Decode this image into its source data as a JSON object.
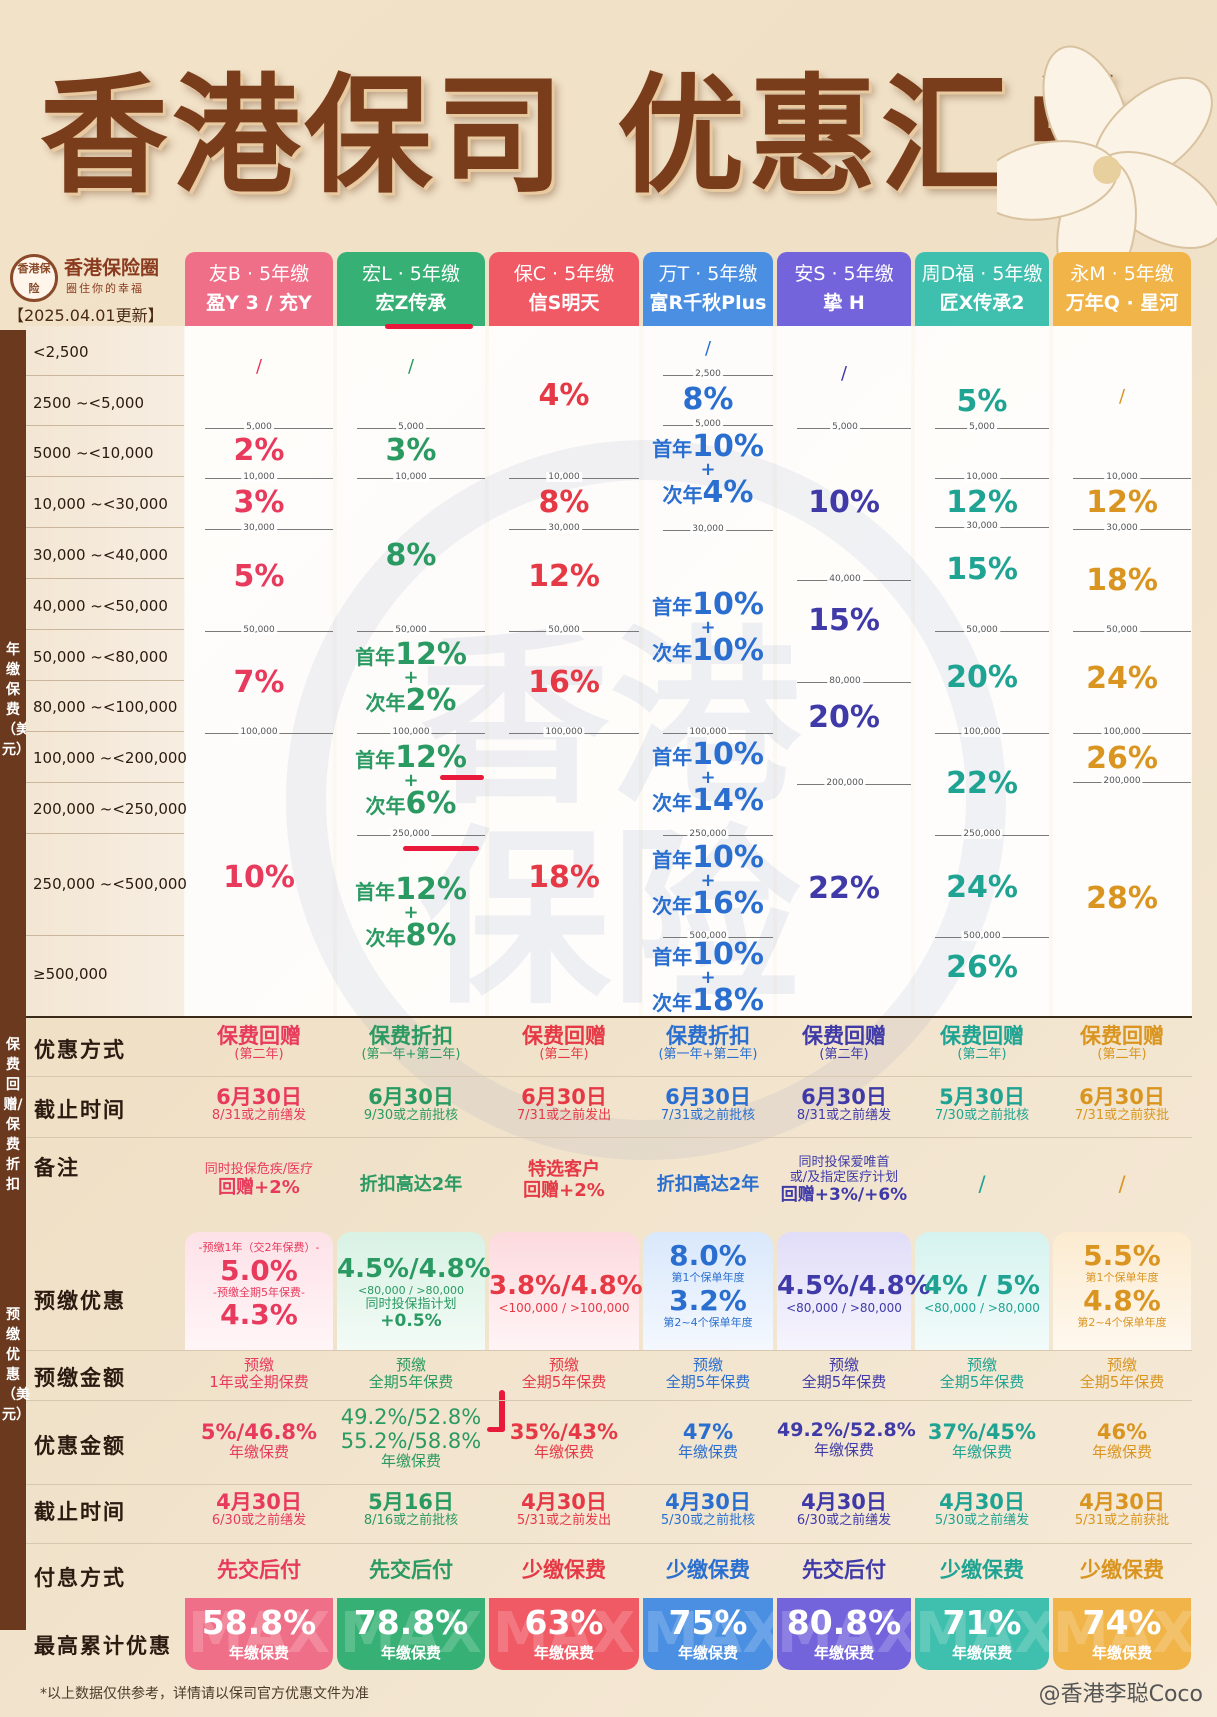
{
  "title": "香港保司 优惠汇总",
  "logo": {
    "badge": "香港保险",
    "name": "香港保险圈",
    "slogan": "圈住你的幸福",
    "update": "【2025.04.01更新】"
  },
  "side_labels": {
    "annual": "年缴保费（美元）",
    "refund": "保费回赠/保费折扣",
    "prepay": "预缴优惠（美元）"
  },
  "columns": [
    {
      "company": "友B · 5年缴",
      "product": "盈Y 3 / 充Y",
      "color": "#ef5f7a"
    },
    {
      "company": "宏L · 5年缴",
      "product": "宏Z传承",
      "color": "#2fa46a"
    },
    {
      "company": "保C · 5年缴",
      "product": "信S明天",
      "color": "#ef4f5c"
    },
    {
      "company": "万T · 5年缴",
      "product": "富R千秋Plus",
      "color": "#3c86e0"
    },
    {
      "company": "安S · 5年缴",
      "product": "挚 H",
      "color": "#6a5ad8"
    },
    {
      "company": "周D福 · 5年缴",
      "product": "匠X传承2",
      "color": "#35b8a6"
    },
    {
      "company": "永M · 5年缴",
      "product": "万年Q · 星河",
      "color": "#efac3c"
    }
  ],
  "ranges": [
    "<2,500",
    "2500 ~<5,000",
    "5000 ~<10,000",
    "10,000 ~<30,000",
    "30,000 ~<40,000",
    "40,000 ~<50,000",
    "50,000 ~<80,000",
    "80,000 ~<100,000",
    "100,000 ~<200,000",
    "200,000 ~<250,000",
    "250,000 ~<500,000",
    "≥500,000"
  ],
  "ticks": {
    "t2500": "2,500",
    "t5000": "5,000",
    "t10000": "10,000",
    "t30000": "30,000",
    "t40000": "40,000",
    "t50000": "50,000",
    "t80000": "80,000",
    "t100000": "100,000",
    "t200000": "200,000",
    "t250000": "250,000",
    "t500000": "500,000"
  },
  "values": {
    "none": "/",
    "c1": [
      "2%",
      "3%",
      "5%",
      "7%",
      "10%"
    ],
    "c2": [
      "3%",
      "8%"
    ],
    "c2_stack": [
      {
        "a": "12%",
        "b": "2%"
      },
      {
        "a": "12%",
        "b": "6%"
      },
      {
        "a": "12%",
        "b": "8%"
      }
    ],
    "c3": [
      "4%",
      "8%",
      "12%",
      "16%",
      "18%"
    ],
    "c4_single": "8%",
    "c4_stack": [
      {
        "a": "10%",
        "b": "4%"
      },
      {
        "a": "10%",
        "b": "10%"
      },
      {
        "a": "10%",
        "b": "14%"
      },
      {
        "a": "10%",
        "b": "16%"
      },
      {
        "a": "10%",
        "b": "18%"
      }
    ],
    "c5": [
      "10%",
      "15%",
      "20%",
      "22%"
    ],
    "c6": [
      "5%",
      "12%",
      "15%",
      "20%",
      "22%",
      "24%",
      "26%"
    ],
    "c7": [
      "12%",
      "18%",
      "24%",
      "26%",
      "28%"
    ],
    "first_year": "首年",
    "second_year": "次年",
    "plus": "+"
  },
  "lower": {
    "labels": {
      "method": "优惠方式",
      "deadline": "截止时间",
      "remark": "备注",
      "prepay": "预缴优惠",
      "prepay_amount": "预缴金额",
      "discount_amount": "优惠金额",
      "prepay_deadline": "截止时间",
      "interest": "付息方式",
      "max": "最高累计优惠"
    },
    "method": [
      {
        "main": "保费回赠",
        "sub": "(第二年)"
      },
      {
        "main": "保费折扣",
        "sub": "(第一年+第二年)"
      },
      {
        "main": "保费回赠",
        "sub": "(第二年)"
      },
      {
        "main": "保费折扣",
        "sub": "(第一年+第二年)"
      },
      {
        "main": "保费回赠",
        "sub": "(第二年)"
      },
      {
        "main": "保费回赠",
        "sub": "(第二年)"
      },
      {
        "main": "保费回赠",
        "sub": "(第二年)"
      }
    ],
    "deadline": [
      {
        "main": "6月30日",
        "sub": "8/31或之前缮发"
      },
      {
        "main": "6月30日",
        "sub": "9/30或之前批核"
      },
      {
        "main": "6月30日",
        "sub": "7/31或之前发出"
      },
      {
        "main": "6月30日",
        "sub": "7/31或之前批核"
      },
      {
        "main": "6月30日",
        "sub": "8/31或之前缮发"
      },
      {
        "main": "5月30日",
        "sub": "7/30或之前批核"
      },
      {
        "main": "6月30日",
        "sub": "7/31或之前获批"
      }
    ],
    "remark": [
      {
        "l1": "同时投保危疾/医疗",
        "l2": "回赠+2%"
      },
      {
        "l1": "",
        "l2": "折扣高达2年"
      },
      {
        "l1": "特选客户",
        "l2": "回赠+2%"
      },
      {
        "l1": "",
        "l2": "折扣高达2年"
      },
      {
        "l1": "同时投保爱唯首",
        "l1b": "或/及指定医疗计划",
        "l2": "回赠+3%/+6%"
      },
      {
        "l1": "",
        "l2": "/"
      },
      {
        "l1": "",
        "l2": "/"
      }
    ],
    "prepay": [
      {
        "t1": "-预缴1年（交2年保费）-",
        "v1": "5.0%",
        "t2": "-预缴全期5年保费-",
        "v2": "4.3%"
      },
      {
        "v1": "4.5%/4.8%",
        "t1": "<80,000  /  >80,000",
        "t2": "同时投保指计划",
        "v2": "+0.5%"
      },
      {
        "v1": "3.8%/4.8%",
        "t1": "<100,000  /  >100,000"
      },
      {
        "v1": "8.0%",
        "t1": "第1个保单年度",
        "v2": "3.2%",
        "t2": "第2~4个保单年度"
      },
      {
        "v1": "4.5%/4.8%",
        "t1": "<80,000  /  >80,000"
      },
      {
        "v1": "4% / 5%",
        "t1": "<80,000  /  >80,000"
      },
      {
        "v1": "5.5%",
        "t1": "第1个保单年度",
        "v2": "4.8%",
        "t2": "第2~4个保单年度"
      }
    ],
    "prepay_amount": [
      {
        "l1": "预缴",
        "l2": "1年或全期保费"
      },
      {
        "l1": "预缴",
        "l2": "全期5年保费"
      },
      {
        "l1": "预缴",
        "l2": "全期5年保费"
      },
      {
        "l1": "预缴",
        "l2": "全期5年保费"
      },
      {
        "l1": "预缴",
        "l2": "全期5年保费"
      },
      {
        "l1": "预缴",
        "l2": "全期5年保费"
      },
      {
        "l1": "预缴",
        "l2": "全期5年保费"
      }
    ],
    "discount_amount": [
      {
        "l1": "5%/46.8%",
        "l2": "年缴保费"
      },
      {
        "l1": "49.2%/52.8%",
        "l1b": "55.2%/58.8%",
        "l2": "年缴保费"
      },
      {
        "l1": "35%/43%",
        "l2": "年缴保费"
      },
      {
        "l1": "47%",
        "l2": "年缴保费"
      },
      {
        "l1": "49.2%/52.8%",
        "l2": "年缴保费"
      },
      {
        "l1": "37%/45%",
        "l2": "年缴保费"
      },
      {
        "l1": "46%",
        "l2": "年缴保费"
      }
    ],
    "prepay_deadline": [
      {
        "main": "4月30日",
        "sub": "6/30或之前缮发"
      },
      {
        "main": "5月16日",
        "sub": "8/16或之前批核"
      },
      {
        "main": "4月30日",
        "sub": "5/31或之前发出"
      },
      {
        "main": "4月30日",
        "sub": "5/30或之前批核"
      },
      {
        "main": "4月30日",
        "sub": "6/30或之前缮发"
      },
      {
        "main": "4月30日",
        "sub": "5/30或之前缮发"
      },
      {
        "main": "4月30日",
        "sub": "5/31或之前获批"
      }
    ],
    "interest": [
      "先交后付",
      "先交后付",
      "少缴保费",
      "少缴保费",
      "先交后付",
      "少缴保费",
      "少缴保费"
    ],
    "max": [
      {
        "v": "58.8%",
        "s": "年缴保费"
      },
      {
        "v": "78.8%",
        "s": "年缴保费"
      },
      {
        "v": "63%",
        "s": "年缴保费"
      },
      {
        "v": "75%",
        "s": "年缴保费"
      },
      {
        "v": "80.8%",
        "s": "年缴保费"
      },
      {
        "v": "71%",
        "s": "年缴保费"
      },
      {
        "v": "74%",
        "s": "年缴保费"
      }
    ],
    "max_watermark": "MAX"
  },
  "footnote": "*以上数据仅供参考，详情请以保司官方优惠文件为准",
  "credit": "@香港李聪Coco",
  "watermark": "香港保险"
}
